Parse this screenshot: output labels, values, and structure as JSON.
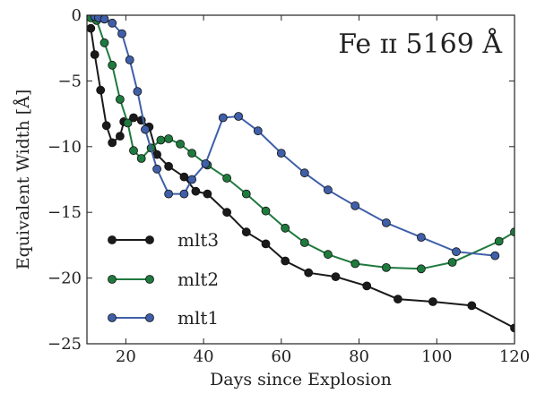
{
  "chart_data": {
    "type": "line",
    "title": "Fe ɪɪ 5169 Å",
    "xlabel": "Days since Explosion",
    "ylabel": "Equivalent Width [Å]",
    "xlim": [
      10,
      120
    ],
    "ylim": [
      -25,
      0
    ],
    "xticks": [
      "20",
      "40",
      "60",
      "80",
      "100",
      "120"
    ],
    "yticks": [
      "0",
      "−5",
      "−10",
      "−15",
      "−20",
      "−25"
    ],
    "grid": false,
    "legend_position": "bottom-left",
    "series": [
      {
        "name": "mlt3",
        "color": "#1a1a1a",
        "x": [
          11,
          12,
          13.5,
          15,
          16.5,
          18.5,
          19.5,
          22,
          24,
          26,
          28,
          31,
          35,
          38,
          41,
          46,
          51,
          56,
          61,
          67,
          74,
          82,
          90,
          99,
          109,
          120
        ],
        "y": [
          -1,
          -3,
          -5.7,
          -8.4,
          -9.7,
          -9.2,
          -8.1,
          -7.8,
          -8.0,
          -8.5,
          -10.6,
          -11.5,
          -12.3,
          -13.4,
          -13.6,
          -15.0,
          -16.5,
          -17.4,
          -18.7,
          -19.6,
          -19.9,
          -20.6,
          -21.6,
          -21.8,
          -22.1,
          -23.8
        ]
      },
      {
        "name": "mlt2",
        "color": "#1f7a3e",
        "x": [
          11,
          12.5,
          14.5,
          16.5,
          18.5,
          20.5,
          22,
          24,
          26.5,
          29,
          31,
          34,
          37,
          41,
          46,
          51,
          56,
          61,
          66,
          72,
          79,
          87,
          96,
          104,
          116,
          120
        ],
        "y": [
          -0.2,
          -0.4,
          -2.1,
          -3.8,
          -6.4,
          -8.2,
          -10.3,
          -10.9,
          -10.1,
          -9.5,
          -9.4,
          -9.8,
          -10.5,
          -11.4,
          -12.4,
          -13.6,
          -14.9,
          -16.2,
          -17.3,
          -18.2,
          -18.9,
          -19.2,
          -19.3,
          -18.8,
          -17.2,
          -16.5
        ]
      },
      {
        "name": "mlt1",
        "color": "#3f5fa8",
        "x": [
          12,
          13,
          14.5,
          16.5,
          19,
          21,
          23,
          25,
          28,
          31,
          35,
          37,
          40.5,
          45,
          49,
          54,
          60,
          66,
          72,
          79,
          87,
          96,
          105,
          115
        ],
        "y": [
          -0.1,
          -0.2,
          -0.3,
          -0.6,
          -1.4,
          -3.4,
          -5.8,
          -8.7,
          -11.7,
          -13.6,
          -13.6,
          -12.5,
          -11.3,
          -7.8,
          -7.7,
          -8.8,
          -10.5,
          -12.0,
          -13.3,
          -14.5,
          -15.8,
          -16.9,
          -18.0,
          -18.3
        ]
      }
    ]
  }
}
